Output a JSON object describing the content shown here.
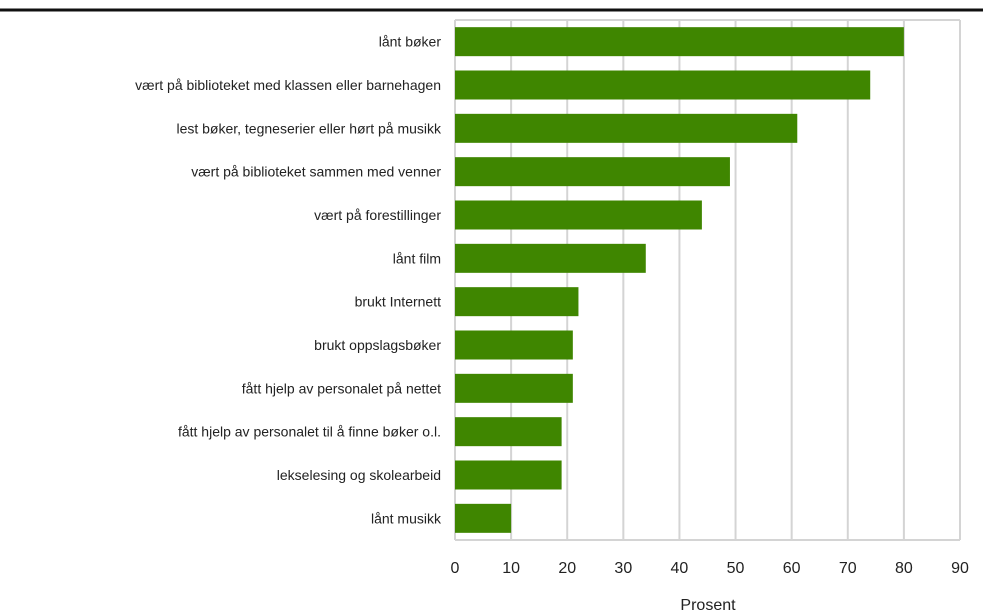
{
  "chart_data": {
    "type": "bar",
    "orientation": "horizontal",
    "title": "",
    "xlabel": "Prosent",
    "ylabel": "",
    "xlim": [
      0,
      90
    ],
    "x_ticks": [
      0,
      10,
      20,
      30,
      40,
      50,
      60,
      70,
      80,
      90
    ],
    "grid": true,
    "bar_color": "#3f8600",
    "categories": [
      "lånt bøker",
      "vært på biblioteket med klassen eller barnehagen",
      "lest bøker, tegneserier eller hørt på musikk",
      "vært på biblioteket sammen med venner",
      "vært på forestillinger",
      "lånt film",
      "brukt Internett",
      "brukt oppslagsbøker",
      "fått hjelp av personalet på nettet",
      "fått hjelp av personalet til å finne bøker o.l.",
      "lekselesing og skolearbeid",
      "lånt musikk"
    ],
    "values": [
      80,
      74,
      61,
      49,
      44,
      34,
      22,
      21,
      21,
      19,
      19,
      10
    ]
  }
}
